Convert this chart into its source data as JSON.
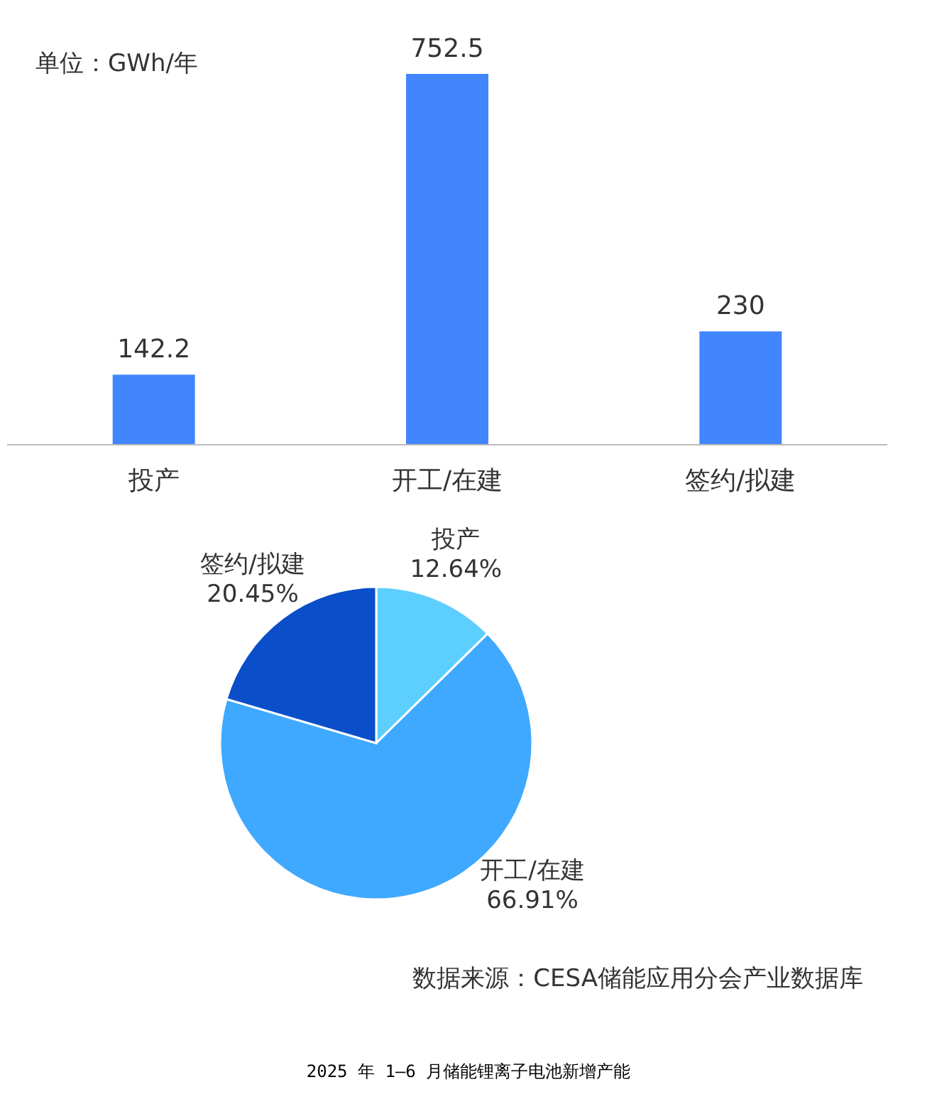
{
  "chart_data": [
    {
      "type": "bar",
      "ylabel": "单位：GWh/年",
      "categories": [
        "投产",
        "开工/在建",
        "签约/拟建"
      ],
      "values": [
        142.2,
        752.5,
        230
      ],
      "color": "#4286ff",
      "data_labels": true
    },
    {
      "type": "pie",
      "categories": [
        "投产",
        "开工/在建",
        "签约/拟建"
      ],
      "values": [
        12.64,
        66.91,
        20.45
      ],
      "colors": [
        "#5ccfff",
        "#3fa9ff",
        "#0a4fc9"
      ],
      "value_labels": [
        "12.64%",
        "66.91%",
        "20.45%"
      ],
      "annotations": [
        "数据来源：CESA储能应用分会产业数据库",
        "2025 年 1—6 月储能锂离子电池新增产能"
      ]
    }
  ]
}
